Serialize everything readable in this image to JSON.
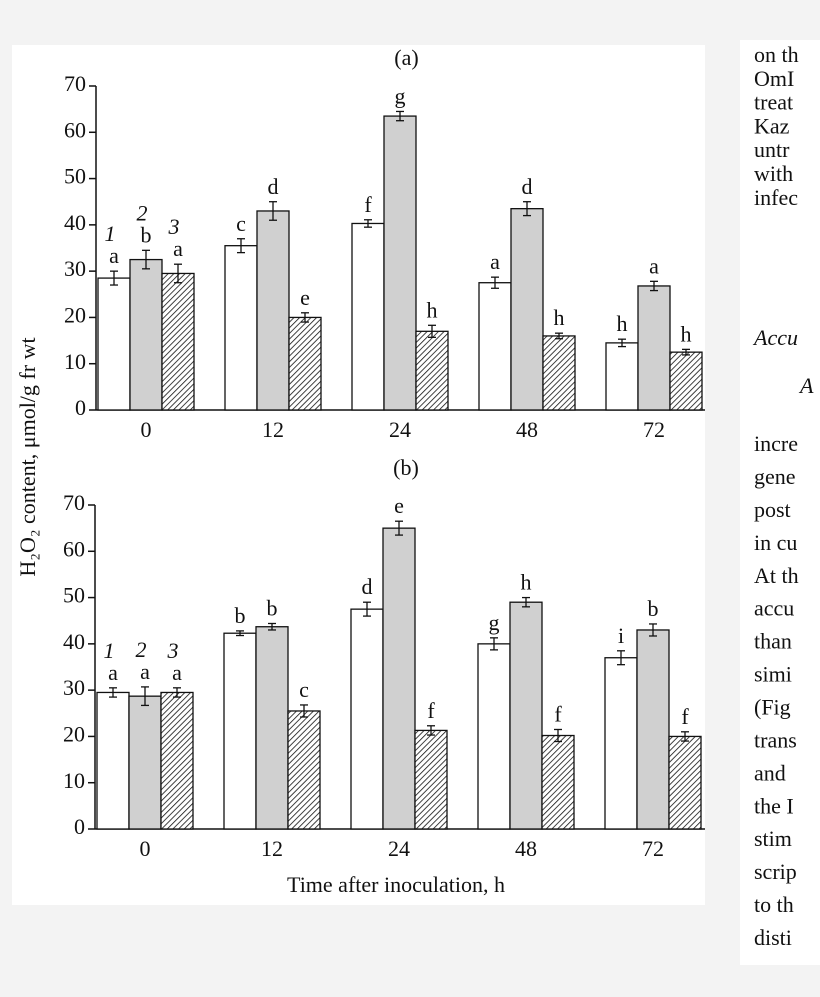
{
  "chart_data": [
    {
      "type": "bar",
      "title": "(a)",
      "y_label": "H₂O₂ content, μmol/g fr wt",
      "categories": [
        "0",
        "12",
        "24",
        "48",
        "72"
      ],
      "ylim": [
        0,
        70
      ],
      "yticks": [
        0,
        10,
        20,
        30,
        40,
        50,
        60,
        70
      ],
      "series": [
        {
          "name": "1",
          "color": "#ffffff",
          "values": [
            28.5,
            35.5,
            40.3,
            27.5,
            14.5
          ],
          "errors": [
            1.5,
            1.5,
            0.8,
            1.2,
            0.8
          ],
          "value_labels": [
            "a",
            "c",
            "f",
            "a",
            "h"
          ]
        },
        {
          "name": "2",
          "color": "#d0d0d0",
          "values": [
            32.5,
            43,
            63.5,
            43.5,
            26.8
          ],
          "errors": [
            2,
            2,
            1,
            1.5,
            1
          ],
          "value_labels": [
            "b",
            "d",
            "g",
            "d",
            "a"
          ]
        },
        {
          "name": "3",
          "color": "#000000",
          "pattern": "hatch",
          "values": [
            29.5,
            20,
            17,
            16,
            12.5
          ],
          "errors": [
            2,
            1,
            1.3,
            0.6,
            0.6
          ],
          "value_labels": [
            "a",
            "e",
            "h",
            "h",
            "h"
          ]
        }
      ]
    },
    {
      "type": "bar",
      "title": "(b)",
      "x_label": "Time after inoculation, h",
      "categories": [
        "0",
        "12",
        "24",
        "48",
        "72"
      ],
      "ylim": [
        0,
        70
      ],
      "yticks": [
        0,
        10,
        20,
        30,
        40,
        50,
        60,
        70
      ],
      "series": [
        {
          "name": "1",
          "color": "#ffffff",
          "values": [
            29.5,
            42.3,
            47.5,
            40,
            37
          ],
          "errors": [
            1,
            0.5,
            1.5,
            1.3,
            1.5
          ],
          "value_labels": [
            "a",
            "b",
            "d",
            "g",
            "i"
          ]
        },
        {
          "name": "2",
          "color": "#d0d0d0",
          "values": [
            28.7,
            43.7,
            65,
            49,
            43
          ],
          "errors": [
            2,
            0.7,
            1.5,
            1,
            1.3
          ],
          "value_labels": [
            "a",
            "b",
            "e",
            "h",
            "b"
          ]
        },
        {
          "name": "3",
          "color": "#000000",
          "pattern": "hatch",
          "values": [
            29.5,
            25.5,
            21.3,
            20.2,
            20
          ],
          "errors": [
            1,
            1.3,
            1,
            1.3,
            1
          ],
          "value_labels": [
            "a",
            "c",
            "f",
            "f",
            "f"
          ]
        }
      ]
    }
  ],
  "side_text": {
    "lines_top": [
      "on th",
      "OmI",
      "treat",
      "Kaz",
      "untr",
      "with",
      "infec"
    ],
    "heading": "Accu",
    "lines_body": [
      "A",
      "incre",
      "gene",
      "post",
      "in cu",
      "At th",
      "accu",
      "than",
      "simi",
      "(Fig",
      "trans",
      "and",
      "the I",
      "stim",
      "scrip",
      "to th",
      "disti"
    ]
  }
}
